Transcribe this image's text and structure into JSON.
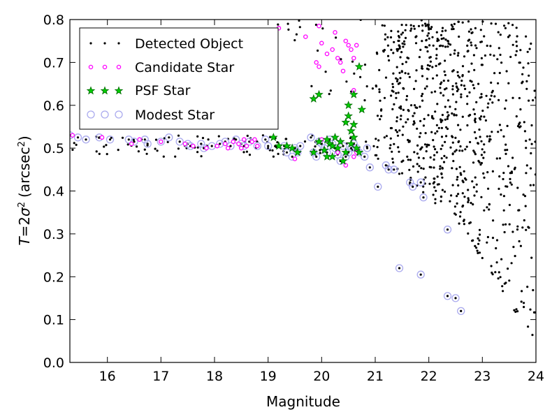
{
  "chart_data": {
    "type": "scatter",
    "title": "",
    "xlabel": "Magnitude",
    "ylabel": {
      "text": "T = 2σ² (arcsec²)",
      "parts": {
        "T": "T",
        "eq": "=",
        "two": "2",
        "sigma": "σ",
        "sup": "2",
        "unit_open": "(arcsec",
        "unit_sup": "2",
        "unit_close": ")"
      }
    },
    "xlim": [
      15.3,
      24
    ],
    "ylim": [
      0.0,
      0.8
    ],
    "xticks": [
      16,
      17,
      18,
      19,
      20,
      21,
      22,
      23,
      24
    ],
    "yticks": [
      0.0,
      0.1,
      0.2,
      0.3,
      0.4,
      0.5,
      0.6,
      0.7,
      0.8
    ],
    "xtick_labels": [
      "16",
      "17",
      "18",
      "19",
      "20",
      "21",
      "22",
      "23",
      "24"
    ],
    "ytick_labels": [
      "0.0",
      "0.1",
      "0.2",
      "0.3",
      "0.4",
      "0.5",
      "0.6",
      "0.7",
      "0.8"
    ],
    "grid": false,
    "legend": {
      "position": "top-left",
      "entries": [
        "Detected Object",
        "Candidate Star",
        "PSF Star",
        "Modest Star"
      ]
    },
    "series": [
      {
        "name": "Modest Star",
        "marker": "circle-open",
        "color": "#aaaaee",
        "points": [
          [
            15.3,
            0.53
          ],
          [
            15.45,
            0.525
          ],
          [
            15.6,
            0.52
          ],
          [
            15.85,
            0.525
          ],
          [
            16.05,
            0.52
          ],
          [
            16.4,
            0.52
          ],
          [
            16.5,
            0.515
          ],
          [
            16.7,
            0.52
          ],
          [
            16.75,
            0.51
          ],
          [
            17.0,
            0.515
          ],
          [
            17.15,
            0.525
          ],
          [
            17.35,
            0.515
          ],
          [
            17.5,
            0.51
          ],
          [
            17.55,
            0.505
          ],
          [
            17.75,
            0.51
          ],
          [
            17.8,
            0.5
          ],
          [
            17.95,
            0.505
          ],
          [
            18.1,
            0.51
          ],
          [
            18.2,
            0.515
          ],
          [
            18.3,
            0.505
          ],
          [
            18.4,
            0.52
          ],
          [
            18.5,
            0.51
          ],
          [
            18.55,
            0.505
          ],
          [
            18.65,
            0.515
          ],
          [
            18.8,
            0.505
          ],
          [
            18.95,
            0.52
          ],
          [
            19.0,
            0.505
          ],
          [
            19.3,
            0.505
          ],
          [
            19.35,
            0.49
          ],
          [
            19.45,
            0.48
          ],
          [
            19.5,
            0.5
          ],
          [
            19.55,
            0.49
          ],
          [
            19.6,
            0.505
          ],
          [
            19.8,
            0.525
          ],
          [
            19.85,
            0.49
          ],
          [
            19.9,
            0.48
          ],
          [
            19.95,
            0.515
          ],
          [
            20.0,
            0.51
          ],
          [
            20.05,
            0.5
          ],
          [
            20.1,
            0.49
          ],
          [
            20.15,
            0.52
          ],
          [
            20.2,
            0.51
          ],
          [
            20.25,
            0.5
          ],
          [
            20.3,
            0.485
          ],
          [
            20.35,
            0.47
          ],
          [
            20.4,
            0.505
          ],
          [
            20.45,
            0.48
          ],
          [
            20.5,
            0.49
          ],
          [
            20.55,
            0.5
          ],
          [
            20.6,
            0.51
          ],
          [
            20.65,
            0.5
          ],
          [
            20.7,
            0.49
          ],
          [
            20.8,
            0.48
          ],
          [
            20.85,
            0.5
          ],
          [
            20.9,
            0.455
          ],
          [
            21.05,
            0.41
          ],
          [
            21.2,
            0.46
          ],
          [
            21.25,
            0.45
          ],
          [
            21.35,
            0.45
          ],
          [
            21.65,
            0.42
          ],
          [
            21.7,
            0.41
          ],
          [
            21.85,
            0.42
          ],
          [
            21.9,
            0.385
          ],
          [
            22.35,
            0.31
          ],
          [
            21.45,
            0.22
          ],
          [
            21.85,
            0.205
          ],
          [
            22.35,
            0.155
          ],
          [
            22.5,
            0.15
          ],
          [
            22.6,
            0.12
          ]
        ]
      },
      {
        "name": "Candidate Star",
        "marker": "circle-small",
        "color": "#ff00ff",
        "points": [
          [
            15.35,
            0.53
          ],
          [
            15.9,
            0.525
          ],
          [
            16.45,
            0.51
          ],
          [
            16.6,
            0.52
          ],
          [
            17.0,
            0.515
          ],
          [
            17.45,
            0.51
          ],
          [
            17.6,
            0.505
          ],
          [
            17.85,
            0.5
          ],
          [
            18.05,
            0.505
          ],
          [
            18.2,
            0.51
          ],
          [
            18.25,
            0.5
          ],
          [
            18.35,
            0.515
          ],
          [
            18.45,
            0.51
          ],
          [
            18.5,
            0.5
          ],
          [
            18.55,
            0.52
          ],
          [
            18.6,
            0.505
          ],
          [
            18.7,
            0.515
          ],
          [
            18.75,
            0.52
          ],
          [
            18.8,
            0.505
          ],
          [
            19.5,
            0.475
          ],
          [
            20.0,
            0.52
          ],
          [
            20.3,
            0.49
          ],
          [
            20.45,
            0.46
          ],
          [
            20.6,
            0.48
          ],
          [
            20.65,
            0.49
          ],
          [
            19.9,
            0.7
          ],
          [
            19.95,
            0.69
          ],
          [
            20.1,
            0.72
          ],
          [
            20.2,
            0.73
          ],
          [
            20.3,
            0.71
          ],
          [
            20.35,
            0.7
          ],
          [
            20.45,
            0.75
          ],
          [
            20.5,
            0.74
          ],
          [
            20.6,
            0.71
          ],
          [
            20.65,
            0.74
          ],
          [
            20.25,
            0.77
          ],
          [
            20.0,
            0.745
          ],
          [
            20.55,
            0.73
          ],
          [
            20.6,
            0.635
          ],
          [
            19.7,
            0.76
          ],
          [
            19.95,
            0.785
          ],
          [
            19.2,
            0.78
          ],
          [
            20.4,
            0.68
          ]
        ]
      },
      {
        "name": "PSF Star",
        "marker": "star",
        "color": "#00cc00",
        "points": [
          [
            19.1,
            0.525
          ],
          [
            19.2,
            0.505
          ],
          [
            19.35,
            0.505
          ],
          [
            19.45,
            0.5
          ],
          [
            19.55,
            0.49
          ],
          [
            19.85,
            0.49
          ],
          [
            19.95,
            0.515
          ],
          [
            20.05,
            0.495
          ],
          [
            20.1,
            0.52
          ],
          [
            20.15,
            0.51
          ],
          [
            20.2,
            0.505
          ],
          [
            20.25,
            0.525
          ],
          [
            20.3,
            0.5
          ],
          [
            20.35,
            0.515
          ],
          [
            20.4,
            0.47
          ],
          [
            20.45,
            0.49
          ],
          [
            20.55,
            0.51
          ],
          [
            20.6,
            0.525
          ],
          [
            20.65,
            0.5
          ],
          [
            20.7,
            0.49
          ],
          [
            20.1,
            0.48
          ],
          [
            20.2,
            0.48
          ],
          [
            19.85,
            0.615
          ],
          [
            19.95,
            0.625
          ],
          [
            20.5,
            0.575
          ],
          [
            20.55,
            0.54
          ],
          [
            20.6,
            0.555
          ],
          [
            20.6,
            0.625
          ],
          [
            20.75,
            0.59
          ],
          [
            20.7,
            0.69
          ],
          [
            20.5,
            0.6
          ],
          [
            20.45,
            0.56
          ]
        ]
      }
    ],
    "detected_object_cloud": {
      "description": "dense field of black dots across the faint-magnitude range",
      "bright_band": {
        "x": [
          15.3,
          21.0
        ],
        "y": [
          0.48,
          0.53
        ]
      },
      "faint_field": {
        "x": [
          21.0,
          24.0
        ],
        "y": [
          0.03,
          0.8
        ]
      }
    },
    "colors": {
      "detected": "#000000",
      "candidate": "#ff00ff",
      "psf_fill": "#00cc00",
      "psf_edge": "#006600",
      "modest": "#aaaaee"
    }
  }
}
